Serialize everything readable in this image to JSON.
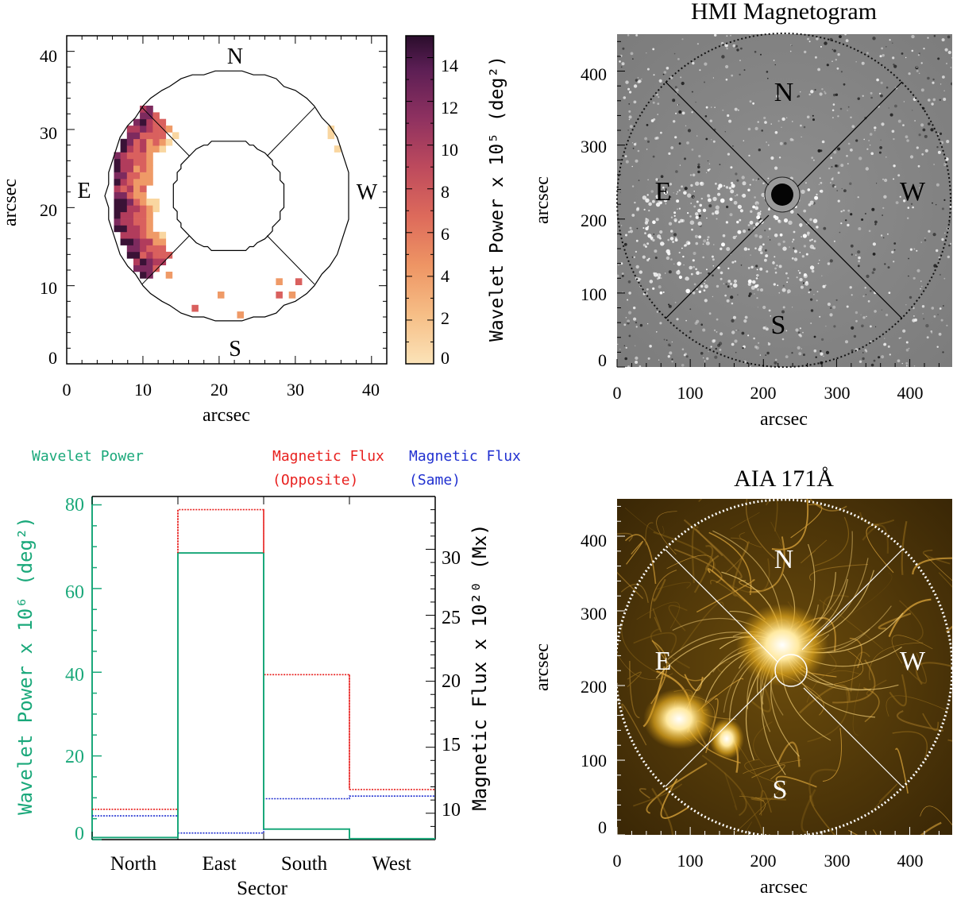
{
  "chart_data": [
    {
      "type": "heatmap",
      "id": "wavelet-map",
      "xlabel": "arcsec",
      "ylabel": "arcsec",
      "xlim": [
        0,
        42
      ],
      "ylim": [
        0,
        42
      ],
      "xticks": [
        "0",
        "10",
        "20",
        "30",
        "40"
      ],
      "yticks": [
        "0",
        "10",
        "20",
        "30",
        "40"
      ],
      "sector_labels": {
        "north": "N",
        "south": "S",
        "east": "E",
        "west": "W"
      },
      "colorbar": {
        "label": "Wavelet Power x 10⁵ (deg²)",
        "ticks": [
          "0",
          "2",
          "4",
          "6",
          "8",
          "10",
          "12",
          "14"
        ],
        "range": [
          0,
          15
        ]
      },
      "colors": [
        "#f9d6a0",
        "#ef9a67",
        "#d9605e",
        "#b13c5c",
        "#7d2a5e",
        "#3a1236"
      ]
    },
    {
      "type": "heatmap",
      "id": "hmi-magnetogram",
      "title": "HMI Magnetogram",
      "xlabel": "arcsec",
      "ylabel": "arcsec",
      "xlim": [
        0,
        450
      ],
      "ylim": [
        0,
        450
      ],
      "xticks": [
        "0",
        "100",
        "200",
        "300",
        "400"
      ],
      "yticks": [
        "0",
        "100",
        "200",
        "300",
        "400"
      ],
      "sector_labels": {
        "north": "N",
        "south": "S",
        "east": "E",
        "west": "W"
      }
    },
    {
      "type": "bar",
      "id": "sector-histogram",
      "xlabel": "Sector",
      "categories": [
        "North",
        "East",
        "South",
        "West"
      ],
      "ylabel_left": "Wavelet Power x 10⁶ (deg²)",
      "ylabel_right": "Magnetic Flux x 10²⁰ (Mx)",
      "ylim_left": [
        0,
        82
      ],
      "ylim_right": [
        8,
        34
      ],
      "yticks_left": [
        "0",
        "20",
        "40",
        "60",
        "80"
      ],
      "yticks_right": [
        "10",
        "15",
        "20",
        "25",
        "30"
      ],
      "legend": {
        "power": "Wavelet Power",
        "flux_opposite_line1": "Magnetic Flux",
        "flux_opposite_line2": "(Opposite)",
        "flux_same_line1": "Magnetic Flux",
        "flux_same_line2": "(Same)"
      },
      "series": [
        {
          "name": "Wavelet Power",
          "axis": "left",
          "color": "#1aa87a",
          "values": [
            0.5,
            68.5,
            2.5,
            0.2
          ]
        },
        {
          "name": "Magnetic Flux (Opposite)",
          "axis": "right",
          "color": "#e8201e",
          "values": [
            10.3,
            33.0,
            20.5,
            11.8
          ]
        },
        {
          "name": "Magnetic Flux (Same)",
          "axis": "right",
          "color": "#2030d0",
          "values": [
            9.8,
            8.5,
            11.1,
            11.3
          ]
        }
      ]
    },
    {
      "type": "heatmap",
      "id": "aia-171",
      "title": "AIA 171Å",
      "xlabel": "arcsec",
      "ylabel": "arcsec",
      "xlim": [
        0,
        450
      ],
      "ylim": [
        0,
        450
      ],
      "xticks": [
        "0",
        "100",
        "200",
        "300",
        "400"
      ],
      "yticks": [
        "0",
        "100",
        "200",
        "300",
        "400"
      ],
      "sector_labels": {
        "north": "N",
        "south": "S",
        "east": "E",
        "west": "W"
      }
    }
  ]
}
